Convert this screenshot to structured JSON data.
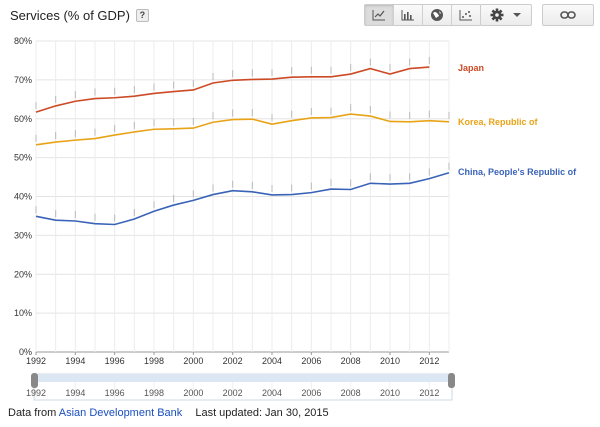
{
  "header": {
    "title": "Services (% of GDP)",
    "help_label": "?"
  },
  "toolbar": {
    "chart_types": [
      {
        "name": "line-chart-icon",
        "active": true
      },
      {
        "name": "bar-chart-icon",
        "active": false
      },
      {
        "name": "map-icon",
        "active": false
      },
      {
        "name": "scatter-chart-icon",
        "active": false
      }
    ],
    "settings_icon": "gear-icon",
    "dropdown_icon": "caret-down-icon",
    "link_icon": "link-icon"
  },
  "footer": {
    "source_prefix": "Data from",
    "source_link": "Asian Development Bank",
    "updated": "Last updated: Jan 30, 2015"
  },
  "chart_data": {
    "type": "line",
    "x": [
      1992,
      1993,
      1994,
      1995,
      1996,
      1997,
      1998,
      1999,
      2000,
      2001,
      2002,
      2003,
      2004,
      2005,
      2006,
      2007,
      2008,
      2009,
      2010,
      2011,
      2012,
      2013
    ],
    "xlim": [
      1992,
      2013
    ],
    "ylim": [
      0,
      80
    ],
    "yticks": [
      0,
      10,
      20,
      30,
      40,
      50,
      60,
      70,
      80
    ],
    "ytick_labels": [
      "0%",
      "10%",
      "20%",
      "30%",
      "40%",
      "50%",
      "60%",
      "70%",
      "80%"
    ],
    "xticks": [
      1992,
      1994,
      1996,
      1998,
      2000,
      2002,
      2004,
      2006,
      2008,
      2010,
      2012
    ],
    "xtick_labels": [
      "1992",
      "1994",
      "1996",
      "1998",
      "2000",
      "2002",
      "2004",
      "2006",
      "2008",
      "2010",
      "2012"
    ],
    "grid": true,
    "legend": "inline-right",
    "series": [
      {
        "name": "Japan",
        "color": "#cc4a25",
        "values": [
          61.7,
          63.3,
          64.5,
          65.2,
          65.4,
          65.8,
          66.5,
          67.0,
          67.4,
          69.2,
          69.9,
          70.1,
          70.2,
          70.7,
          70.8,
          70.8,
          71.5,
          72.9,
          71.5,
          72.9,
          73.3,
          null
        ]
      },
      {
        "name": "Korea, Republic of",
        "color": "#e8a317",
        "values": [
          53.3,
          54.0,
          54.5,
          54.9,
          55.8,
          56.6,
          57.3,
          57.4,
          57.6,
          59.1,
          59.8,
          59.9,
          58.6,
          59.5,
          60.2,
          60.3,
          61.2,
          60.7,
          59.3,
          59.2,
          59.5,
          59.2
        ]
      },
      {
        "name": "China, People's Republic of",
        "color": "#3a63b8",
        "values": [
          34.9,
          33.9,
          33.7,
          33.0,
          32.8,
          34.2,
          36.2,
          37.8,
          39.0,
          40.5,
          41.5,
          41.2,
          40.4,
          40.5,
          41.0,
          41.9,
          41.8,
          43.4,
          43.2,
          43.4,
          44.6,
          46.1
        ]
      }
    ]
  }
}
